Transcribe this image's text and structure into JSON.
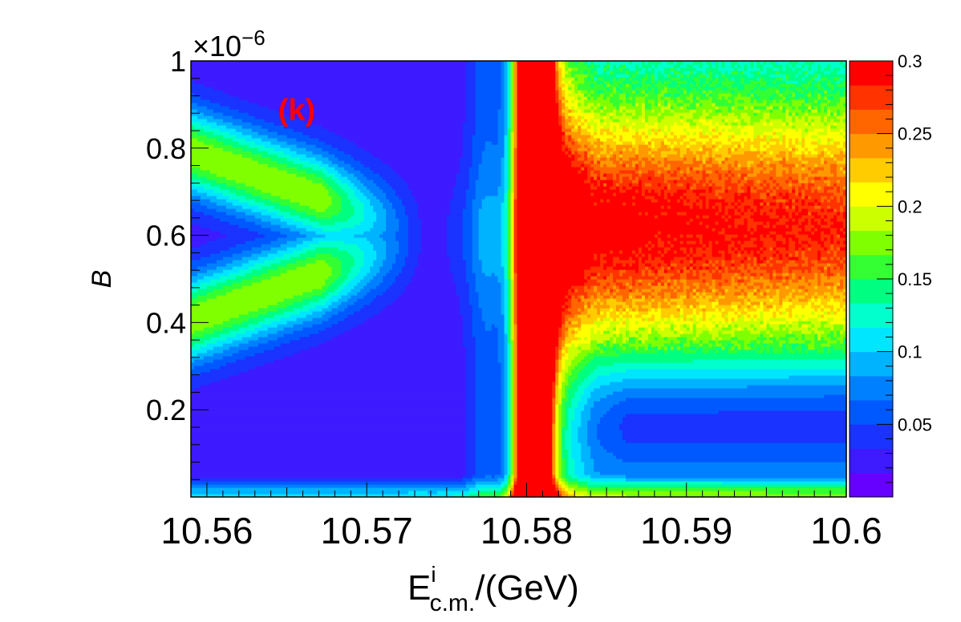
{
  "chart_data": {
    "type": "heatmap",
    "title": "",
    "panel_label": "(k)",
    "xlabel": {
      "base": "E",
      "superscript": "i",
      "subscript": "c.m.",
      "suffix": "/(GeV)"
    },
    "ylabel": "B",
    "xlim": [
      10.559,
      10.6
    ],
    "ylim": [
      0.0,
      1.0
    ],
    "y_multiplier": "×10",
    "y_multiplier_exponent": "−6",
    "x_ticks": [
      {
        "value": 10.56,
        "label": "10.56"
      },
      {
        "value": 10.57,
        "label": "10.57"
      },
      {
        "value": 10.58,
        "label": "10.58"
      },
      {
        "value": 10.59,
        "label": "10.59"
      },
      {
        "value": 10.6,
        "label": "10.6"
      }
    ],
    "y_ticks": [
      {
        "value": 0.2,
        "label": "0.2"
      },
      {
        "value": 0.4,
        "label": "0.4"
      },
      {
        "value": 0.6,
        "label": "0.6"
      },
      {
        "value": 0.8,
        "label": "0.8"
      },
      {
        "value": 1.0,
        "label": "1"
      }
    ],
    "colorbar": {
      "zlim": [
        0.0,
        0.3
      ],
      "ticks": [
        {
          "value": 0.05,
          "label": "0.05"
        },
        {
          "value": 0.1,
          "label": "0.1"
        },
        {
          "value": 0.15,
          "label": "0.15"
        },
        {
          "value": 0.2,
          "label": "0.2"
        },
        {
          "value": 0.25,
          "label": "0.25"
        },
        {
          "value": 0.3,
          "label": "0.3"
        }
      ],
      "colors": [
        "#6600ff",
        "#3d1aff",
        "#1a33ff",
        "#0059ff",
        "#0080ff",
        "#00b3ff",
        "#00e6ff",
        "#00ffcc",
        "#00ff80",
        "#33ff33",
        "#80ff00",
        "#ccff00",
        "#ffff00",
        "#ffcc00",
        "#ff9900",
        "#ff6600",
        "#ff3300",
        "#ff0000"
      ]
    },
    "grid": false,
    "resonance_center": 10.5803,
    "node_point": {
      "x": 10.5738,
      "y": 0.6
    }
  }
}
